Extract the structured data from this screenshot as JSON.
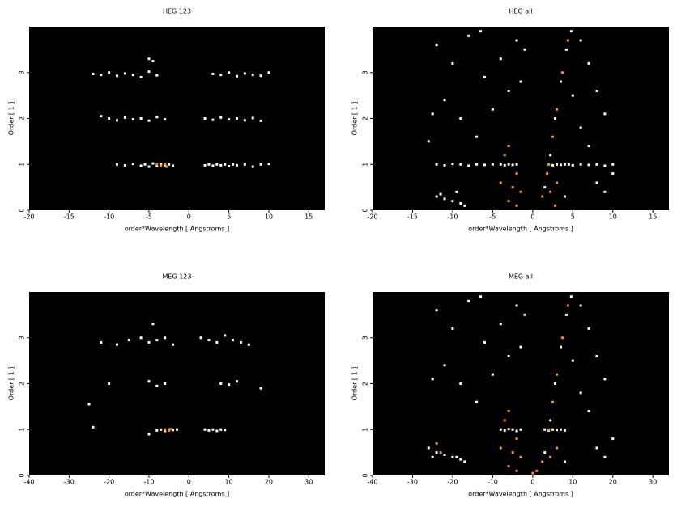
{
  "chart_data": [
    {
      "type": "scatter",
      "title": "HEG 123",
      "xlabel": "order*Wavelength [ Angstroms ]",
      "ylabel": "Order [ 1 ]",
      "xlim": [
        -20,
        17
      ],
      "ylim": [
        0,
        4
      ],
      "xticks": [
        -20,
        -15,
        -10,
        -5,
        0,
        5,
        10,
        15
      ],
      "yticks": [
        0,
        1,
        2,
        3
      ],
      "series": [
        {
          "color": "#ffffff",
          "x": [
            -9,
            -8,
            -7,
            -6,
            -5.5,
            -5,
            -4.5,
            -4,
            -3.5,
            -3,
            -2.5,
            -2,
            2,
            2.5,
            3,
            3.5,
            4,
            4.5,
            5,
            5.5,
            6,
            7,
            8,
            9,
            10,
            -11,
            -10,
            -9,
            -8,
            -7,
            -6,
            -5,
            -4,
            -3,
            2,
            3,
            4,
            5,
            6,
            7,
            8,
            9,
            -12,
            -11,
            -10,
            -9,
            -8,
            -7,
            -6,
            -5,
            -4,
            3,
            4,
            5,
            6,
            7,
            8,
            9,
            10,
            -5,
            -4.5
          ],
          "y": [
            1,
            0.98,
            1.01,
            0.97,
            1,
            0.95,
            1.02,
            0.96,
            1,
            0.98,
            1,
            0.97,
            0.98,
            1,
            0.97,
            1,
            0.98,
            1,
            0.96,
            1,
            0.98,
            1,
            0.95,
            1,
            1.01,
            2.05,
            2,
            1.96,
            2.02,
            1.98,
            2,
            1.95,
            2.03,
            1.98,
            2,
            1.97,
            2.02,
            1.98,
            2,
            1.96,
            2.01,
            1.95,
            2.97,
            2.95,
            3,
            2.93,
            2.98,
            2.95,
            2.9,
            3.02,
            2.94,
            2.97,
            2.95,
            3,
            2.92,
            2.98,
            2.95,
            2.93,
            3,
            3.3,
            3.25
          ]
        },
        {
          "color": "#ff8c1a",
          "x": [
            -4,
            -3.5,
            -3,
            -2.8
          ],
          "y": [
            1,
            0.97,
            1.01,
            0.95
          ]
        }
      ]
    },
    {
      "type": "scatter",
      "title": "HEG all",
      "xlabel": "order*Wavelength [ Angstroms ]",
      "ylabel": "Order [ 1 ]",
      "xlim": [
        -20,
        17
      ],
      "ylim": [
        0,
        4
      ],
      "xticks": [
        -20,
        -15,
        -10,
        -5,
        0,
        5,
        10,
        15
      ],
      "yticks": [
        0,
        1,
        2,
        3
      ],
      "series": [
        {
          "color": "#ffffff",
          "x": [
            -12,
            -11,
            -10,
            -9,
            -8,
            -7,
            -6,
            -5,
            -4,
            -3.5,
            -3,
            -2.5,
            -2,
            2,
            2.5,
            3,
            3.5,
            4,
            4.5,
            5,
            6,
            7,
            8,
            9,
            10,
            -12,
            -10,
            -8,
            -6,
            -4,
            -2,
            -11,
            -9,
            -7,
            -5,
            -3,
            -13,
            -12,
            -11,
            -10,
            -9,
            -11.5,
            -8.5,
            6,
            7,
            8,
            9,
            6,
            7,
            8,
            9,
            10,
            5,
            4,
            -1.5,
            -1,
            1.5,
            2.2,
            2.8,
            3.5,
            4.2,
            4.8,
            -12.5,
            -6.5,
            -9.5
          ],
          "y": [
            1,
            0.98,
            1.01,
            1,
            0.97,
            1,
            0.99,
            1,
            1,
            0.98,
            1,
            0.99,
            1,
            1,
            0.98,
            1,
            0.99,
            1,
            1,
            0.98,
            1,
            0.99,
            1,
            0.97,
            1,
            3.6,
            3.2,
            3.8,
            2.9,
            3.3,
            3.7,
            2.4,
            2,
            1.6,
            2.2,
            2.6,
            1.5,
            0.3,
            0.25,
            0.2,
            0.15,
            0.35,
            0.1,
            3.7,
            3.2,
            2.6,
            2.1,
            1.8,
            1.4,
            0.6,
            0.4,
            0.8,
            2.5,
            0.3,
            2.8,
            3.5,
            0.5,
            1.2,
            2,
            2.8,
            3.5,
            3.9,
            2.1,
            3.9,
            0.4
          ]
        },
        {
          "color": "#ff8c1a",
          "x": [
            -3,
            -2.5,
            -2,
            -3.5,
            -2,
            -4,
            -1.5,
            -3,
            1.2,
            2,
            2.5,
            3,
            3.7,
            4.4,
            2.2,
            3,
            1.8,
            2.8
          ],
          "y": [
            0.2,
            0.5,
            0.8,
            1.2,
            0.1,
            0.6,
            0.4,
            1.4,
            0.3,
            1,
            1.6,
            2.2,
            3,
            3.7,
            0.4,
            0.6,
            0.8,
            0.1
          ]
        }
      ]
    },
    {
      "type": "scatter",
      "title": "MEG 123",
      "xlabel": "order*Wavelength [ Angstroms ]",
      "ylabel": "Order [ 1 ]",
      "xlim": [
        -40,
        34
      ],
      "ylim": [
        0,
        4
      ],
      "xticks": [
        -40,
        -30,
        -20,
        -10,
        0,
        10,
        20,
        30
      ],
      "yticks": [
        0,
        1,
        2,
        3
      ],
      "series": [
        {
          "color": "#ffffff",
          "x": [
            -8,
            -7,
            -6,
            -5,
            -4,
            -3,
            4,
            5,
            6,
            7,
            8,
            9,
            -22,
            -18,
            -15,
            -12,
            -10,
            -8,
            -6,
            -4,
            3,
            5,
            7,
            9,
            11,
            13,
            15,
            -20,
            -10,
            -8,
            -6,
            8,
            10,
            12,
            18,
            -25,
            -24,
            -9,
            -10
          ],
          "y": [
            0.98,
            1,
            0.97,
            1,
            0.99,
            1,
            1,
            0.98,
            1,
            0.97,
            1,
            0.99,
            2.9,
            2.85,
            2.95,
            3,
            2.9,
            2.95,
            3,
            2.85,
            3,
            2.95,
            2.9,
            3.05,
            2.95,
            2.9,
            2.85,
            2,
            2.05,
            1.95,
            2,
            2,
            1.98,
            2.05,
            1.9,
            1.55,
            1.05,
            3.3,
            0.9
          ]
        },
        {
          "color": "#ff8c1a",
          "x": [
            -6,
            -5,
            -4.5
          ],
          "y": [
            1,
            0.98,
            1.01
          ]
        }
      ]
    },
    {
      "type": "scatter",
      "title": "MEG all",
      "xlabel": "order*Wavelength [ Angstroms ]",
      "ylabel": "Order [ 1 ]",
      "xlim": [
        -40,
        34
      ],
      "ylim": [
        0,
        4
      ],
      "xticks": [
        -40,
        -30,
        -20,
        -10,
        0,
        10,
        20,
        30
      ],
      "yticks": [
        0,
        1,
        2,
        3
      ],
      "series": [
        {
          "color": "#ffffff",
          "x": [
            -8,
            -7,
            -6,
            -5,
            -4,
            -3,
            3,
            4,
            5,
            6,
            7,
            8,
            -24,
            -20,
            -16,
            -12,
            -8,
            -4,
            -22,
            -18,
            -14,
            -10,
            -6,
            -26,
            -24,
            -22,
            -20,
            -18,
            -25,
            -17,
            12,
            14,
            16,
            18,
            12,
            14,
            16,
            18,
            20,
            10,
            8,
            -3,
            -2,
            3,
            4.4,
            5.6,
            7,
            8.4,
            9.6,
            -25,
            -13,
            -19
          ],
          "y": [
            1,
            0.98,
            1.01,
            1,
            0.97,
            1,
            1,
            0.98,
            1,
            0.99,
            1,
            0.98,
            3.6,
            3.2,
            3.8,
            2.9,
            3.3,
            3.7,
            2.4,
            2,
            1.6,
            2.2,
            2.6,
            0.6,
            0.5,
            0.45,
            0.4,
            0.35,
            0.4,
            0.3,
            3.7,
            3.2,
            2.6,
            2.1,
            1.8,
            1.4,
            0.6,
            0.4,
            0.8,
            2.5,
            0.3,
            2.8,
            3.5,
            0.5,
            1.2,
            2,
            2.8,
            3.5,
            3.9,
            2.1,
            3.9,
            0.4
          ]
        },
        {
          "color": "#ff8c1a",
          "x": [
            -6,
            -5,
            -4,
            -7,
            -4,
            -8,
            -3,
            -6,
            2.4,
            4,
            5,
            6,
            7.4,
            8.8,
            4.4,
            6,
            -24,
            -23,
            1,
            0
          ],
          "y": [
            0.2,
            0.5,
            0.8,
            1.2,
            0.1,
            0.6,
            0.4,
            1.4,
            0.3,
            1,
            1.6,
            2.2,
            3,
            3.7,
            0.4,
            0.6,
            0.7,
            0.5,
            0.1,
            0.05
          ]
        }
      ]
    }
  ]
}
